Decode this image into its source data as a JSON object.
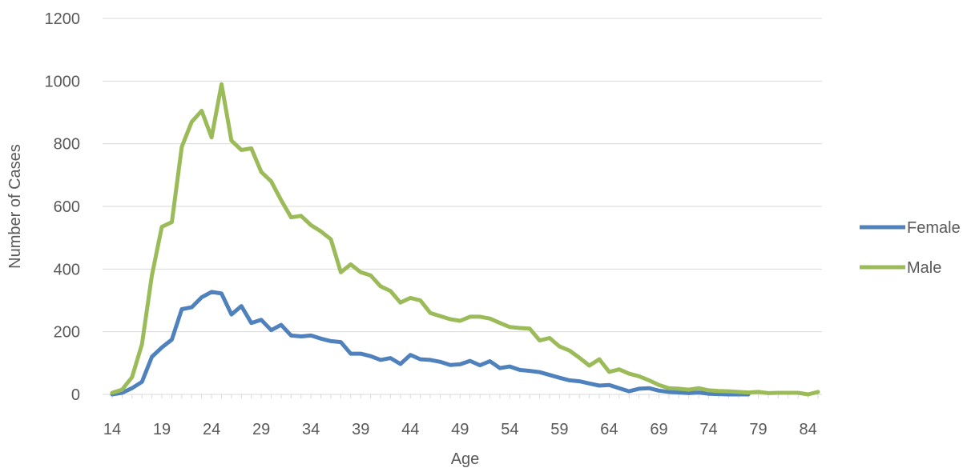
{
  "chart_data": {
    "type": "line",
    "title": "",
    "xlabel": "Age",
    "ylabel": "Number of Cases",
    "x": [
      14,
      15,
      16,
      17,
      18,
      19,
      20,
      21,
      22,
      23,
      24,
      25,
      26,
      27,
      28,
      29,
      30,
      31,
      32,
      33,
      34,
      35,
      36,
      37,
      38,
      39,
      40,
      41,
      42,
      43,
      44,
      45,
      46,
      47,
      48,
      49,
      50,
      51,
      52,
      53,
      54,
      55,
      56,
      57,
      58,
      59,
      60,
      61,
      62,
      63,
      64,
      65,
      66,
      67,
      68,
      69,
      70,
      71,
      72,
      73,
      74,
      75,
      76,
      77,
      78,
      79,
      80,
      81,
      82,
      83,
      84,
      85
    ],
    "x_ticks": [
      14,
      19,
      24,
      29,
      34,
      39,
      44,
      49,
      54,
      59,
      64,
      69,
      74,
      79,
      84
    ],
    "xlim": [
      14,
      85
    ],
    "ylim": [
      0,
      1200
    ],
    "y_ticks": [
      0,
      200,
      400,
      600,
      800,
      1000,
      1200
    ],
    "gridlines": true,
    "legend_position": "right",
    "series": [
      {
        "name": "Female",
        "color": "#4F81BD",
        "values": [
          0,
          5,
          20,
          40,
          120,
          150,
          175,
          272,
          278,
          310,
          327,
          322,
          255,
          282,
          228,
          238,
          205,
          222,
          188,
          185,
          188,
          178,
          170,
          167,
          130,
          130,
          122,
          110,
          116,
          97,
          126,
          112,
          110,
          104,
          94,
          96,
          107,
          93,
          106,
          84,
          89,
          78,
          75,
          71,
          62,
          53,
          45,
          42,
          35,
          28,
          30,
          20,
          10,
          18,
          20,
          12,
          8,
          6,
          4,
          6,
          2,
          1,
          0,
          0,
          0,
          null,
          null,
          null,
          null,
          null,
          null,
          null
        ]
      },
      {
        "name": "Male",
        "color": "#9BBB59",
        "values": [
          5,
          15,
          55,
          160,
          380,
          535,
          550,
          790,
          870,
          905,
          820,
          990,
          810,
          780,
          785,
          710,
          680,
          620,
          565,
          570,
          540,
          520,
          495,
          390,
          415,
          390,
          380,
          345,
          330,
          293,
          308,
          300,
          260,
          250,
          240,
          235,
          248,
          248,
          242,
          228,
          215,
          212,
          210,
          172,
          180,
          153,
          140,
          117,
          92,
          112,
          72,
          80,
          66,
          58,
          45,
          30,
          20,
          18,
          15,
          20,
          13,
          11,
          10,
          8,
          6,
          8,
          4,
          5,
          5,
          5,
          0,
          8
        ]
      }
    ]
  }
}
